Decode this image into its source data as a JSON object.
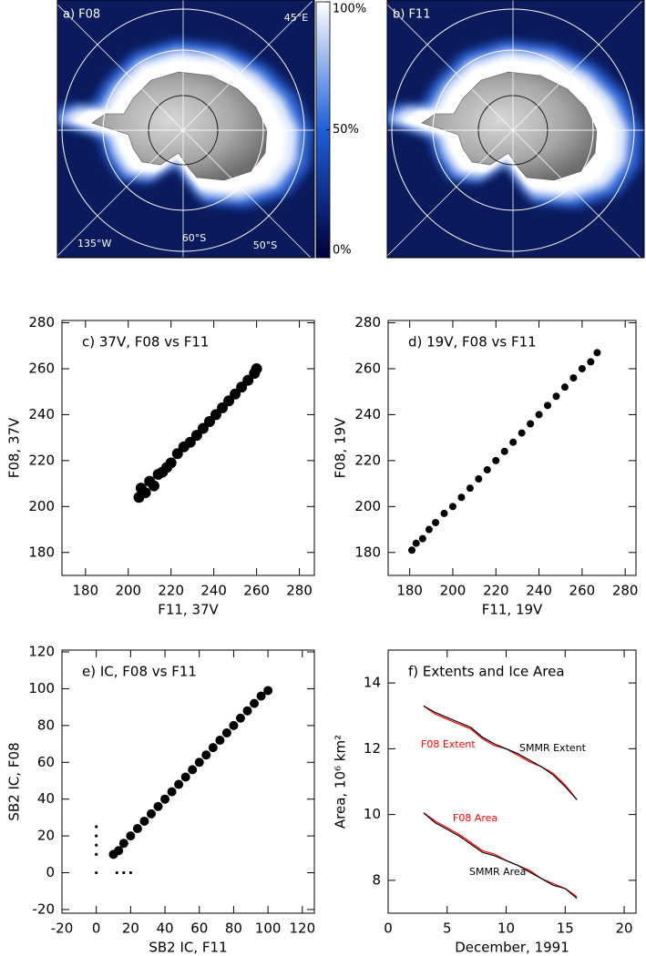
{
  "chart_data": [
    {
      "type": "map",
      "title": "a) F08",
      "labels": [
        "45°E",
        "135°W",
        "60°S",
        "50°S"
      ],
      "colorbar": {
        "lim": [
          0,
          100
        ],
        "ticks": [
          {
            "value": 0,
            "label": "0%"
          },
          {
            "value": 50,
            "label": "50%"
          },
          {
            "value": 100,
            "label": "100%"
          }
        ]
      }
    },
    {
      "type": "map",
      "title": "b) F11"
    },
    {
      "type": "scatter",
      "title": "c) 37V, F08 vs F11",
      "xlabel": "F11, 37V",
      "ylabel": "F08, 37V",
      "x": [
        205,
        206,
        208,
        210,
        212,
        214,
        216,
        218,
        220,
        223,
        226,
        229,
        232,
        235,
        238,
        241,
        244,
        247,
        250,
        253,
        256,
        259,
        260
      ],
      "y": [
        204,
        208,
        206,
        211,
        209,
        214,
        215,
        217,
        219,
        223,
        226,
        228,
        231,
        234,
        237,
        240,
        243,
        246,
        249,
        252,
        255,
        258,
        260
      ],
      "color": "#000000",
      "xlim": [
        169,
        287
      ],
      "ylim": [
        170,
        281
      ],
      "xticks": [
        180,
        200,
        220,
        240,
        260,
        280
      ],
      "yticks": [
        180,
        200,
        220,
        240,
        260,
        280
      ]
    },
    {
      "type": "scatter",
      "title": "d) 19V, F08 vs F11",
      "xlabel": "F11, 19V",
      "ylabel": "F08, 19V",
      "x": [
        181,
        183,
        186,
        189,
        192,
        196,
        200,
        204,
        208,
        212,
        216,
        220,
        224,
        228,
        232,
        236,
        240,
        244,
        248,
        252,
        256,
        260,
        264,
        267
      ],
      "y": [
        181,
        184,
        186,
        190,
        193,
        197,
        200,
        204,
        208,
        212,
        216,
        220,
        224,
        228,
        232,
        236,
        240,
        244,
        248,
        252,
        256,
        260,
        263,
        267
      ],
      "color": "#000000",
      "xlim": [
        170,
        285
      ],
      "ylim": [
        170,
        281
      ],
      "xticks": [
        180,
        200,
        220,
        240,
        260,
        280
      ],
      "yticks": [
        180,
        200,
        220,
        240,
        260,
        280
      ]
    },
    {
      "type": "scatter",
      "title": "e) IC, F08 vs F11",
      "xlabel": "SB2 IC, F11",
      "ylabel": "SB2 IC, F08",
      "x": [
        0,
        0,
        0,
        0,
        0,
        12,
        16,
        20,
        10,
        13,
        16,
        20,
        24,
        28,
        32,
        36,
        40,
        44,
        48,
        52,
        56,
        60,
        64,
        68,
        72,
        76,
        80,
        84,
        88,
        92,
        96,
        100
      ],
      "y": [
        25,
        20,
        15,
        10,
        0,
        0,
        0,
        0,
        10,
        12,
        16,
        20,
        24,
        28,
        32,
        36,
        40,
        44,
        48,
        52,
        56,
        60,
        64,
        68,
        72,
        76,
        80,
        84,
        88,
        92,
        96,
        99
      ],
      "color": "#000000",
      "xlim": [
        -20,
        127
      ],
      "ylim": [
        -22,
        121
      ],
      "xticks": [
        -20,
        0,
        20,
        40,
        60,
        80,
        100,
        120
      ],
      "yticks": [
        -20,
        0,
        20,
        40,
        60,
        80,
        100,
        120
      ]
    },
    {
      "type": "line",
      "title": "f) Extents and Ice Area",
      "xlabel": "December, 1991",
      "ylabel": "Area, 10⁶ km²",
      "x": [
        3,
        4,
        5,
        6,
        7,
        8,
        9,
        10,
        11,
        12,
        13,
        14,
        15,
        16
      ],
      "series": [
        {
          "name": "F08 Extent",
          "color": "#ff0000",
          "values": [
            13.3,
            13.05,
            12.9,
            12.75,
            12.6,
            12.3,
            12.1,
            12.0,
            11.8,
            11.6,
            11.45,
            11.25,
            10.9,
            10.45
          ]
        },
        {
          "name": "SMMR Extent",
          "color": "#000000",
          "values": [
            13.3,
            13.1,
            12.95,
            12.8,
            12.65,
            12.35,
            12.15,
            12.0,
            11.85,
            11.65,
            11.45,
            11.2,
            10.85,
            10.45
          ]
        },
        {
          "name": "F08 Area",
          "color": "#ff0000",
          "values": [
            10.05,
            9.8,
            9.6,
            9.4,
            9.15,
            8.9,
            8.8,
            8.6,
            8.45,
            8.3,
            8.05,
            7.9,
            7.75,
            7.5
          ]
        },
        {
          "name": "SMMR Area",
          "color": "#000000",
          "values": [
            10.05,
            9.75,
            9.55,
            9.35,
            9.1,
            8.85,
            8.75,
            8.6,
            8.45,
            8.25,
            8.05,
            7.85,
            7.75,
            7.45
          ]
        }
      ],
      "xlim": [
        0,
        21
      ],
      "ylim": [
        7,
        15
      ],
      "xticks": [
        0,
        5,
        10,
        15,
        20
      ],
      "yticks": [
        8,
        10,
        12,
        14
      ]
    }
  ]
}
